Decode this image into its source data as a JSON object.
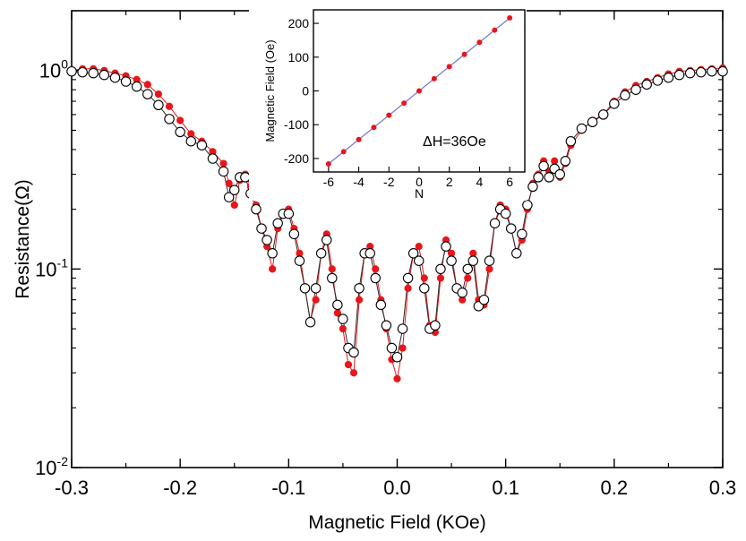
{
  "chart_data": [
    {
      "type": "scatter",
      "title": "",
      "xlabel": "Magnetic Field (KOe)",
      "ylabel": "Resistance(Ω)",
      "xlim": [
        -0.3,
        0.3
      ],
      "ylim": [
        0.01,
        2
      ],
      "y_scale": "log",
      "x_ticks": [
        "-0.3",
        "-0.2",
        "-0.1",
        "0.0",
        "0.1",
        "0.2",
        "0.3"
      ],
      "y_ticks": [
        {
          "base": "10",
          "exp": "0",
          "value": 1
        },
        {
          "base": "10",
          "exp": "-1",
          "value": 0.1
        },
        {
          "base": "10",
          "exp": "-2",
          "value": 0.01
        }
      ],
      "grid": false,
      "series": [
        {
          "marker": "filled-circle",
          "color": "#e8161b",
          "line_color": "#e8161b",
          "x": [
            -0.3,
            -0.29,
            -0.28,
            -0.27,
            -0.26,
            -0.25,
            -0.24,
            -0.23,
            -0.22,
            -0.21,
            -0.2,
            -0.19,
            -0.18,
            -0.17,
            -0.16,
            -0.155,
            -0.15,
            -0.145,
            -0.14,
            -0.135,
            -0.13,
            -0.125,
            -0.12,
            -0.115,
            -0.11,
            -0.105,
            -0.1,
            -0.095,
            -0.09,
            -0.085,
            -0.08,
            -0.075,
            -0.07,
            -0.065,
            -0.06,
            -0.055,
            -0.05,
            -0.045,
            -0.04,
            -0.035,
            -0.03,
            -0.025,
            -0.02,
            -0.015,
            -0.01,
            -0.005,
            0.0,
            0.005,
            0.01,
            0.015,
            0.02,
            0.025,
            0.03,
            0.035,
            0.04,
            0.045,
            0.05,
            0.055,
            0.06,
            0.065,
            0.07,
            0.075,
            0.08,
            0.085,
            0.09,
            0.095,
            0.1,
            0.105,
            0.11,
            0.115,
            0.12,
            0.125,
            0.13,
            0.135,
            0.14,
            0.145,
            0.15,
            0.155,
            0.16,
            0.17,
            0.18,
            0.19,
            0.2,
            0.21,
            0.22,
            0.23,
            0.24,
            0.25,
            0.26,
            0.27,
            0.28,
            0.29,
            0.3
          ],
          "y": [
            1.0,
            1.02,
            1.02,
            1.0,
            0.97,
            0.94,
            0.9,
            0.85,
            0.76,
            0.66,
            0.56,
            0.48,
            0.44,
            0.39,
            0.34,
            0.27,
            0.21,
            0.28,
            0.3,
            0.26,
            0.21,
            0.16,
            0.13,
            0.1,
            0.16,
            0.19,
            0.2,
            0.16,
            0.12,
            0.08,
            0.055,
            0.07,
            0.12,
            0.15,
            0.1,
            0.06,
            0.05,
            0.033,
            0.03,
            0.07,
            0.12,
            0.13,
            0.1,
            0.07,
            0.05,
            0.035,
            0.028,
            0.04,
            0.08,
            0.12,
            0.13,
            0.09,
            0.052,
            0.048,
            0.09,
            0.14,
            0.12,
            0.08,
            0.07,
            0.09,
            0.12,
            0.07,
            0.066,
            0.1,
            0.17,
            0.21,
            0.2,
            0.16,
            0.12,
            0.14,
            0.2,
            0.27,
            0.3,
            0.35,
            0.31,
            0.35,
            0.29,
            0.34,
            0.42,
            0.5,
            0.56,
            0.6,
            0.7,
            0.78,
            0.84,
            0.88,
            0.92,
            0.96,
            0.99,
            1.0,
            1.01,
            1.02,
            1.03
          ]
        },
        {
          "marker": "open-circle",
          "color": "#ffffff",
          "edge_color": "#000000",
          "line_color": "#2a2a2a",
          "x": [
            -0.3,
            -0.29,
            -0.28,
            -0.27,
            -0.26,
            -0.25,
            -0.24,
            -0.23,
            -0.22,
            -0.21,
            -0.2,
            -0.19,
            -0.18,
            -0.17,
            -0.16,
            -0.155,
            -0.15,
            -0.145,
            -0.14,
            -0.135,
            -0.13,
            -0.125,
            -0.12,
            -0.115,
            -0.11,
            -0.105,
            -0.1,
            -0.095,
            -0.09,
            -0.085,
            -0.08,
            -0.075,
            -0.07,
            -0.065,
            -0.06,
            -0.055,
            -0.05,
            -0.045,
            -0.04,
            -0.035,
            -0.03,
            -0.025,
            -0.02,
            -0.015,
            -0.01,
            -0.005,
            0.0,
            0.005,
            0.01,
            0.015,
            0.02,
            0.025,
            0.03,
            0.035,
            0.04,
            0.045,
            0.05,
            0.055,
            0.06,
            0.065,
            0.07,
            0.075,
            0.08,
            0.085,
            0.09,
            0.095,
            0.1,
            0.105,
            0.11,
            0.115,
            0.12,
            0.125,
            0.13,
            0.135,
            0.14,
            0.145,
            0.15,
            0.155,
            0.16,
            0.17,
            0.18,
            0.19,
            0.2,
            0.21,
            0.22,
            0.23,
            0.24,
            0.25,
            0.26,
            0.27,
            0.28,
            0.29,
            0.3
          ],
          "y": [
            0.99,
            0.98,
            0.97,
            0.95,
            0.92,
            0.88,
            0.83,
            0.76,
            0.67,
            0.57,
            0.49,
            0.44,
            0.42,
            0.36,
            0.31,
            0.23,
            0.25,
            0.29,
            0.29,
            0.24,
            0.2,
            0.16,
            0.14,
            0.12,
            0.17,
            0.19,
            0.19,
            0.15,
            0.11,
            0.08,
            0.054,
            0.08,
            0.12,
            0.14,
            0.09,
            0.066,
            0.056,
            0.04,
            0.038,
            0.08,
            0.12,
            0.12,
            0.09,
            0.066,
            0.052,
            0.04,
            0.036,
            0.05,
            0.09,
            0.12,
            0.11,
            0.08,
            0.05,
            0.052,
            0.1,
            0.13,
            0.11,
            0.08,
            0.076,
            0.1,
            0.11,
            0.065,
            0.07,
            0.11,
            0.17,
            0.2,
            0.19,
            0.16,
            0.12,
            0.15,
            0.21,
            0.26,
            0.29,
            0.33,
            0.29,
            0.32,
            0.3,
            0.35,
            0.44,
            0.51,
            0.55,
            0.6,
            0.68,
            0.75,
            0.8,
            0.85,
            0.89,
            0.92,
            0.95,
            0.97,
            0.98,
            0.99,
            0.99
          ]
        }
      ]
    },
    {
      "type": "line",
      "title": "",
      "xlabel": "N",
      "ylabel": "Magnetic Field (Oe)",
      "xlim": [
        -7,
        7
      ],
      "ylim": [
        -240,
        240
      ],
      "x_ticks": [
        "-6",
        "-4",
        "-2",
        "0",
        "2",
        "4",
        "6"
      ],
      "y_ticks": [
        "-200",
        "-100",
        "0",
        "100",
        "200"
      ],
      "annotation": "ΔH=36Oe",
      "grid": false,
      "series": [
        {
          "line_color": "#7b7bd6",
          "marker": "filled-circle",
          "color": "#e8161b",
          "x": [
            -6,
            -5,
            -4,
            -3,
            -2,
            -1,
            0,
            1,
            2,
            3,
            4,
            5,
            6
          ],
          "y": [
            -216,
            -180,
            -144,
            -108,
            -72,
            -36,
            0,
            36,
            72,
            108,
            144,
            180,
            216
          ]
        }
      ]
    }
  ]
}
